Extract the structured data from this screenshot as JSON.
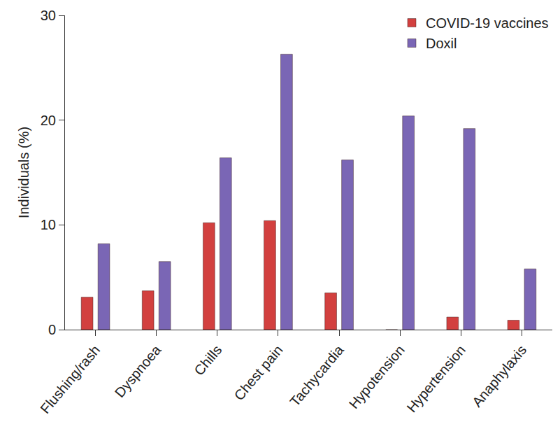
{
  "chart_data": {
    "type": "bar",
    "y_label": "Individuals (%)",
    "categories": [
      "Flushing/rash",
      "Dyspnoea",
      "Chills",
      "Chest pain",
      "Tachycardia",
      "Hypotension",
      "Hypertension",
      "Anaphylaxis"
    ],
    "series": [
      {
        "name": "COVID-19 vaccines",
        "color": "#d2403f",
        "values": [
          3.1,
          3.7,
          10.2,
          10.4,
          3.5,
          0,
          1.2,
          0.9
        ]
      },
      {
        "name": "Doxil",
        "color": "#7a66b5",
        "values": [
          8.2,
          6.5,
          16.4,
          26.3,
          16.2,
          20.4,
          19.2,
          5.8
        ]
      }
    ],
    "ylim": [
      0,
      30
    ],
    "yticks": [
      0,
      10,
      20,
      30
    ],
    "grid": false,
    "legend": "top right"
  }
}
